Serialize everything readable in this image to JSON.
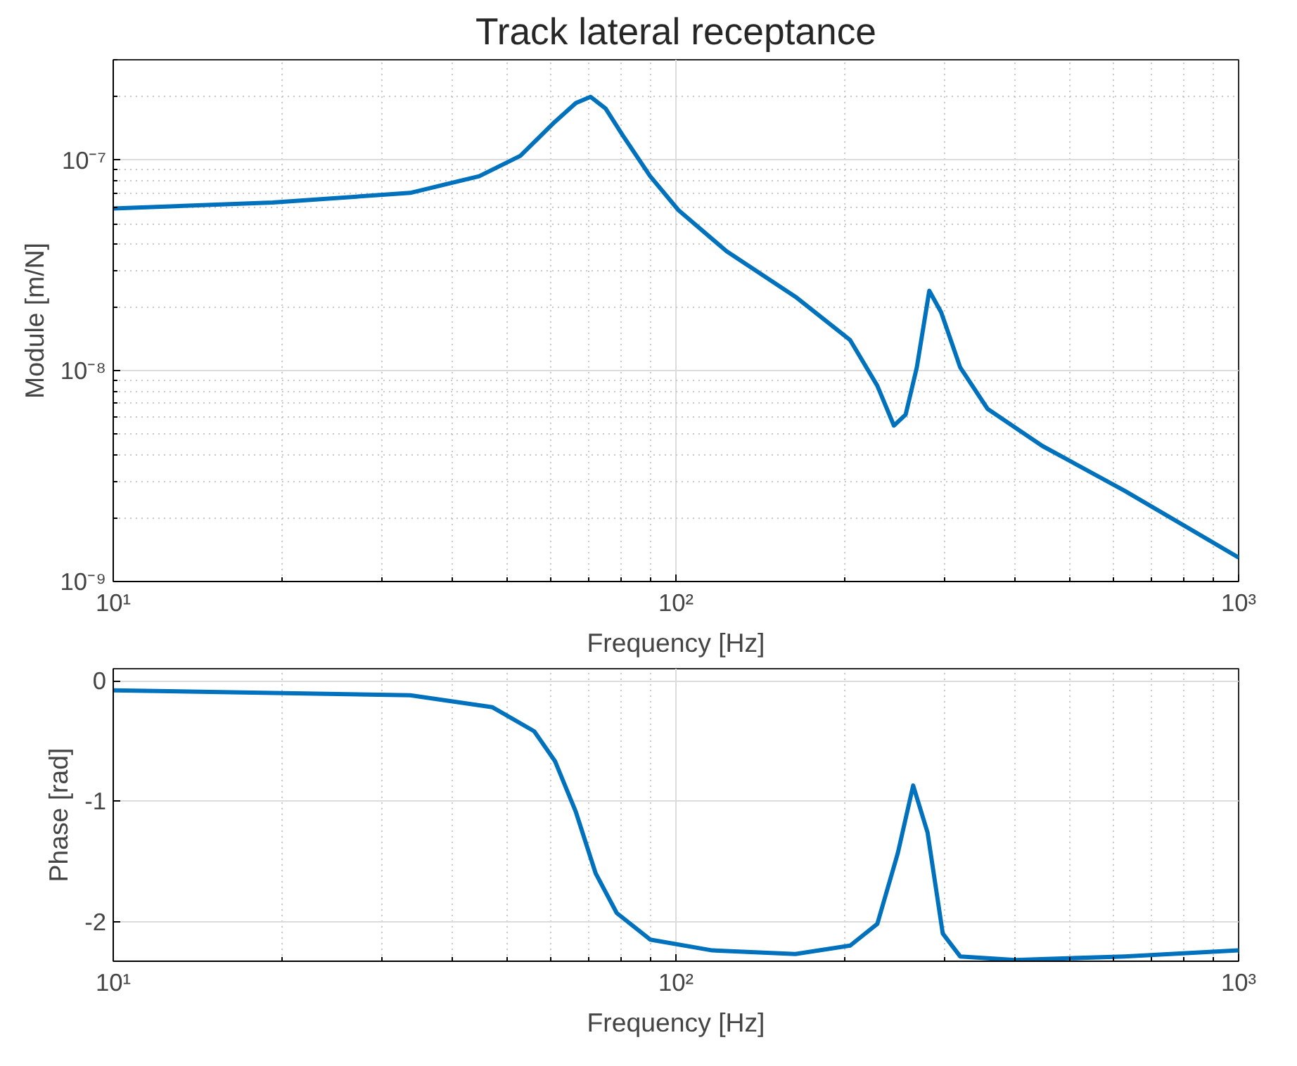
{
  "chart_data": [
    {
      "type": "line",
      "title": "Track lateral receptance",
      "xlabel": "Frequency [Hz]",
      "ylabel": "Module [m/N]",
      "log": "xy",
      "grid": true,
      "xlim": [
        10,
        1000
      ],
      "xticks": [
        {
          "value": 10,
          "label": "10¹"
        },
        {
          "value": 100,
          "label": "10²"
        },
        {
          "value": 1000,
          "label": "10³"
        }
      ],
      "ylim": [
        1e-09,
        3e-07
      ],
      "yticks": [
        {
          "value": 1e-09,
          "label": "10⁻⁹"
        },
        {
          "value": 1e-08,
          "label": "10⁻⁸"
        },
        {
          "value": 1e-07,
          "label": "10⁻⁷"
        }
      ],
      "x": [
        10,
        19.2,
        33.7,
        44.7,
        52.9,
        60.9,
        66.4,
        70.5,
        75,
        80.5,
        90,
        101,
        123,
        163,
        204,
        228,
        244,
        256,
        268,
        282,
        296,
        320,
        358,
        448,
        627,
        1000
      ],
      "series": [
        {
          "color": "#0072bd",
          "values": [
            5.9e-08,
            6.3e-08,
            7e-08,
            8.4e-08,
            1.05e-07,
            1.52e-07,
            1.87e-07,
            2e-07,
            1.76e-07,
            1.31e-07,
            8.4e-08,
            5.8e-08,
            3.7e-08,
            2.25e-08,
            1.4e-08,
            8.5e-09,
            5.5e-09,
            6.2e-09,
            1.04e-08,
            2.4e-08,
            1.9e-08,
            1.04e-08,
            6.6e-09,
            4.4e-09,
            2.7e-09,
            1.3e-09
          ]
        }
      ]
    },
    {
      "type": "line",
      "xlabel": "Frequency [Hz]",
      "ylabel": "Phase [rad]",
      "log": "x",
      "grid": true,
      "xlim": [
        10,
        1000
      ],
      "xticks": [
        {
          "value": 10,
          "label": "10¹"
        },
        {
          "value": 100,
          "label": "10²"
        },
        {
          "value": 1000,
          "label": "10³"
        }
      ],
      "ylim": [
        -2.33,
        0.1
      ],
      "yticks": [
        -2,
        -1,
        0
      ],
      "x": [
        10,
        33.7,
        47.2,
        56,
        61,
        66.4,
        72,
        78.5,
        90,
        116,
        163,
        204,
        228,
        248,
        264,
        280,
        298,
        320,
        401,
        627,
        1000
      ],
      "series": [
        {
          "color": "#0072bd",
          "values": [
            -0.08,
            -0.12,
            -0.22,
            -0.42,
            -0.67,
            -1.09,
            -1.6,
            -1.93,
            -2.15,
            -2.24,
            -2.27,
            -2.2,
            -2.02,
            -1.43,
            -0.87,
            -1.26,
            -2.1,
            -2.29,
            -2.32,
            -2.29,
            -2.24
          ]
        }
      ]
    }
  ]
}
